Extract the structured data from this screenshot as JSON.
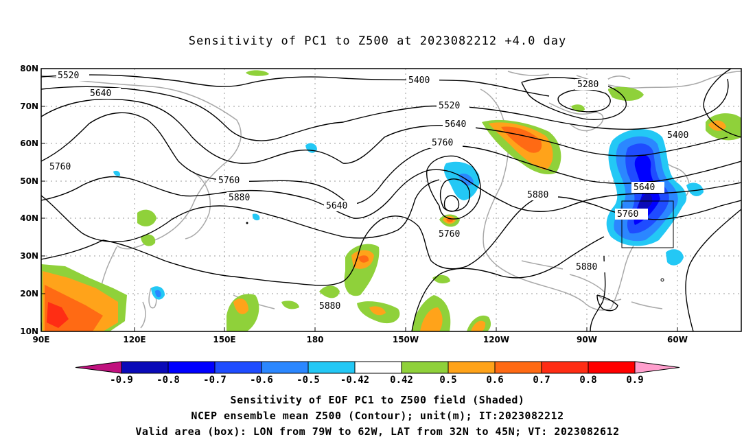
{
  "title": "Sensitivity of PC1 to Z500 at 2023082212 +4.0 day",
  "map": {
    "lon_labels": [
      "90E",
      "120E",
      "150E",
      "180",
      "150W",
      "120W",
      "90W",
      "60W"
    ],
    "lat_labels": [
      "80N",
      "70N",
      "60N",
      "50N",
      "40N",
      "30N",
      "20N",
      "10N"
    ],
    "contour_labels": [
      "5520",
      "5640",
      "5760",
      "5760",
      "5880",
      "5400",
      "5520",
      "5640",
      "5760",
      "5640",
      "5760",
      "5880",
      "5280",
      "5400",
      "5640",
      "5760",
      "5880",
      "5880"
    ],
    "box": {
      "lon": [
        "79W",
        "62W"
      ],
      "lat": [
        "32N",
        "45N"
      ]
    }
  },
  "colorbar": {
    "labels": [
      "-0.9",
      "-0.8",
      "-0.7",
      "-0.6",
      "-0.5",
      "-0.42",
      "0.42",
      "0.5",
      "0.6",
      "0.7",
      "0.8",
      "0.9"
    ],
    "colors": [
      "#c0117e",
      "#0a0ab8",
      "#0000ff",
      "#1f4cff",
      "#2b87ff",
      "#23c8f5",
      "#ffffff",
      "#8fd13a",
      "#ffa31a",
      "#ff6a14",
      "#ff2d14",
      "#ff0000",
      "#ff9fcd"
    ]
  },
  "captions": {
    "line1": "Sensitivity of EOF PC1 to Z500 field (Shaded)",
    "line2": "NCEP ensemble mean Z500 (Contour); unit(m); IT:2023082212",
    "line3": "Valid area (box): LON from 79W to 62W, LAT from 32N to 45N; VT: 2023082612"
  }
}
